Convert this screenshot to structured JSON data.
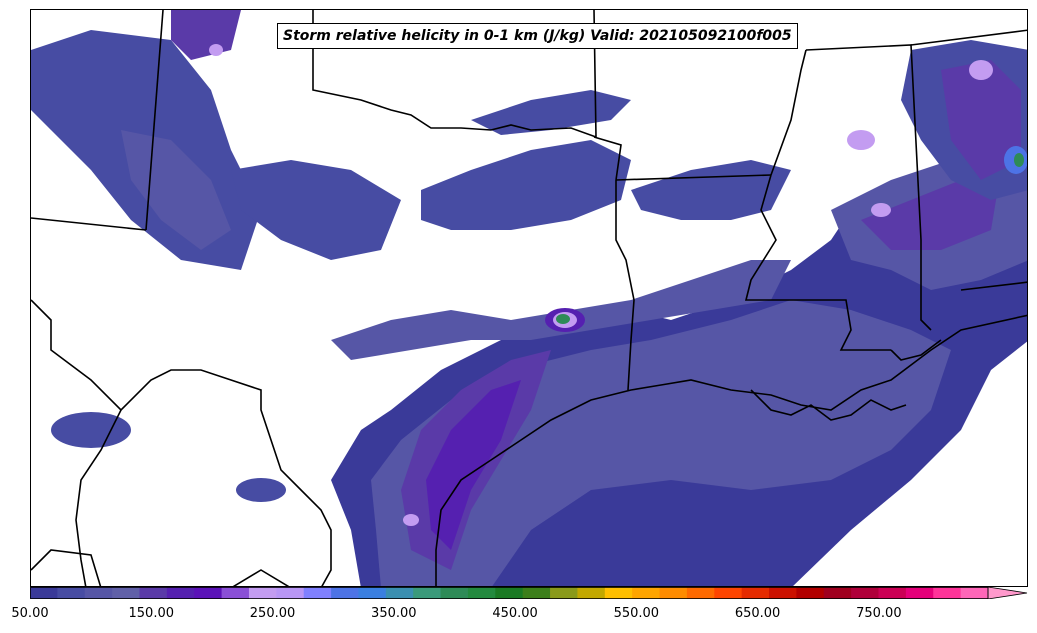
{
  "title": "Storm relative helicity in 0-1 km (J/kg) Valid: 202105092100f005",
  "colorbar": {
    "min": 50,
    "max": 840,
    "step": 25,
    "extend": "max",
    "colors": [
      "#3a3a99",
      "#474ca3",
      "#5656a6",
      "#6060a8",
      "#5a3aa8",
      "#5520b0",
      "#5b12b8",
      "#8a4fd6",
      "#c39cf1",
      "#b896f5",
      "#8080ff",
      "#4d73e6",
      "#3a7fe0",
      "#3a8fb0",
      "#3a9a7a",
      "#2e8b57",
      "#238a3e",
      "#1a7a23",
      "#3c7f1a",
      "#8a9a1a",
      "#c2a800",
      "#ffbf00",
      "#ffa500",
      "#ff8c00",
      "#ff6a00",
      "#ff4500",
      "#e62b00",
      "#cc1100",
      "#b30000",
      "#a0001f",
      "#b0003a",
      "#cc0055",
      "#e6007a",
      "#ff3399",
      "#ff66b8"
    ],
    "extend_color": "#ff99cc",
    "ticks": [
      "50.00",
      "150.00",
      "250.00",
      "350.00",
      "450.00",
      "550.00",
      "650.00",
      "750.00"
    ]
  },
  "palette": {
    "low": "#3a3a99",
    "mid": "#5a5aa8",
    "violet": "#5b12b8",
    "lilac": "#c39cf1",
    "blue": "#4d73e6",
    "green": "#2e8b57"
  }
}
